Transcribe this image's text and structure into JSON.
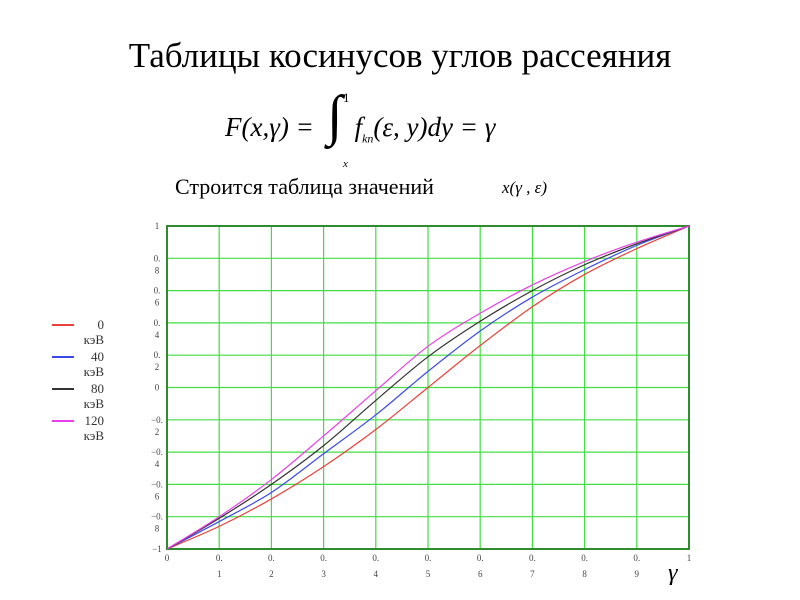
{
  "slide": {
    "title": "Таблицы косинусов углов рассеяния",
    "formula": {
      "lhs": "F(x,γ) = ",
      "integral": "∫",
      "upper": "1",
      "lower": "x",
      "integrand": "f",
      "sub": "kn",
      "args": "(ε, y)dy = γ"
    },
    "subtitle": "Строится таблица значений",
    "subtitle_expr": "x(γ , ε)"
  },
  "chart_data": {
    "type": "line",
    "xlabel": "γ",
    "ylabel": "",
    "xlim": [
      0,
      1
    ],
    "ylim": [
      -1,
      1
    ],
    "grid": true,
    "legend_placement": "left",
    "x_ticks": [
      "0",
      "0.1",
      "0.2",
      "0.3",
      "0.4",
      "0.5",
      "0.6",
      "0.7",
      "0.8",
      "0.9",
      "1"
    ],
    "y_ticks": [
      "1",
      "0.8",
      "0.6",
      "0.4",
      "0.2",
      "0",
      "−0.2",
      "−0.4",
      "−0.6",
      "−0.8",
      "−1"
    ],
    "x": [
      0,
      0.1,
      0.2,
      0.3,
      0.4,
      0.5,
      0.6,
      0.7,
      0.8,
      0.9,
      1
    ],
    "series": [
      {
        "name": "0 кэВ",
        "color": "#e8413a",
        "values": [
          -1,
          -0.86,
          -0.69,
          -0.49,
          -0.26,
          0,
          0.26,
          0.5,
          0.7,
          0.86,
          1
        ]
      },
      {
        "name": "40 кэВ",
        "color": "#3a4ae8",
        "values": [
          -1,
          -0.83,
          -0.65,
          -0.41,
          -0.17,
          0.1,
          0.35,
          0.56,
          0.73,
          0.88,
          1
        ]
      },
      {
        "name": "80 кэВ",
        "color": "#333333",
        "values": [
          -1,
          -0.81,
          -0.6,
          -0.36,
          -0.08,
          0.19,
          0.41,
          0.6,
          0.76,
          0.89,
          1
        ]
      },
      {
        "name": "120 кэВ",
        "color": "#e840e8",
        "values": [
          -1,
          -0.8,
          -0.57,
          -0.3,
          -0.02,
          0.255,
          0.46,
          0.635,
          0.78,
          0.9,
          1
        ]
      }
    ],
    "grid_color": "#44dd44",
    "frame_color": "#2e8b2e"
  }
}
